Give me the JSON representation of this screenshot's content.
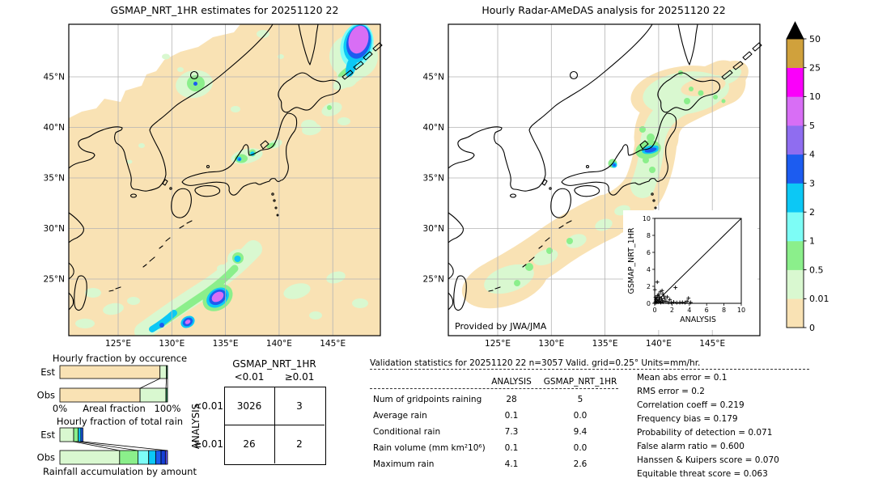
{
  "palette": {
    "tan": "#f9e2b4",
    "pale_green": "#d9f8d0",
    "green": "#8bef8b",
    "aqua": "#7dfdf6",
    "cyan": "#0cc8f5",
    "blue": "#1c5cf0",
    "deep_blue": "#1440d8",
    "medium_purple": "#8f6df0",
    "violet": "#d86ef5",
    "magenta": "#fa00fa",
    "goldenrod": "#d0a13c",
    "dark_green": "#2e8b57",
    "indigo": "#5f54e8",
    "over": "#000000"
  },
  "left_map": {
    "title": "GSMAP_NRT_1HR estimates for 20251120 22",
    "lat_tick_labels": [
      "45°N",
      "40°N",
      "35°N",
      "30°N",
      "25°N"
    ],
    "lon_tick_labels": [
      "125°E",
      "130°E",
      "135°E",
      "140°E",
      "145°E"
    ]
  },
  "right_map": {
    "title": "Hourly Radar-AMeDAS analysis for 20251120 22",
    "credit": "Provided by JWA/JMA",
    "lat_tick_labels": [
      "45°N",
      "40°N",
      "35°N",
      "30°N",
      "25°N"
    ],
    "lon_tick_labels": [
      "125°E",
      "130°E",
      "135°E",
      "140°E",
      "145°E"
    ]
  },
  "colorbar": {
    "tick_labels_bottom_to_top": [
      "0",
      "0.01",
      "0.5",
      "1",
      "2",
      "3",
      "4",
      "5",
      "10",
      "25",
      "50"
    ],
    "segment_colors_bottom_to_top": [
      "tan",
      "pale_green",
      "green",
      "aqua",
      "cyan",
      "blue",
      "medium_purple",
      "violet",
      "magenta",
      "goldenrod"
    ],
    "over_color": "over",
    "units": "mm/hr"
  },
  "chart_data": [
    {
      "id": "occurrence_fraction",
      "type": "bar",
      "title": "Hourly fraction by occurence",
      "xlabel": "Areal fraction",
      "x_tick_labels": [
        "0%",
        "100%"
      ],
      "rows": [
        {
          "label": "Est",
          "segments": [
            {
              "pct": 93,
              "color_key": "tan"
            },
            {
              "pct": 6,
              "color_key": "pale_green"
            },
            {
              "pct": 1,
              "color_key": "dark_green"
            }
          ]
        },
        {
          "label": "Obs",
          "segments": [
            {
              "pct": 74.5,
              "color_key": "tan"
            },
            {
              "pct": 24,
              "color_key": "pale_green"
            },
            {
              "pct": 1.5,
              "color_key": "dark_green"
            }
          ]
        }
      ]
    },
    {
      "id": "totalrain_fraction",
      "type": "bar",
      "title": "Hourly fraction of total rain",
      "xlabel": "Rainfall accumulation by amount",
      "rows": [
        {
          "label": "Est",
          "segments": [
            {
              "pct": 12.8,
              "color_key": "pale_green"
            },
            {
              "pct": 4.3,
              "color_key": "green"
            },
            {
              "pct": 2.4,
              "color_key": "cyan"
            },
            {
              "pct": 1.9,
              "color_key": "blue"
            }
          ]
        },
        {
          "label": "Obs",
          "segments": [
            {
              "pct": 55.5,
              "color_key": "pale_green"
            },
            {
              "pct": 17,
              "color_key": "green"
            },
            {
              "pct": 10,
              "color_key": "aqua"
            },
            {
              "pct": 6.5,
              "color_key": "cyan"
            },
            {
              "pct": 5,
              "color_key": "blue"
            },
            {
              "pct": 4,
              "color_key": "deep_blue"
            },
            {
              "pct": 2,
              "color_key": "indigo"
            }
          ]
        }
      ]
    },
    {
      "id": "contingency_table",
      "type": "table",
      "col_group": "GSMAP_NRT_1HR",
      "row_group": "ANALYSIS",
      "col_labels": [
        "<0.01",
        "≥0.01"
      ],
      "row_labels": [
        "<0.01",
        "≥0.01"
      ],
      "values": [
        [
          3026,
          3
        ],
        [
          26,
          2
        ]
      ]
    },
    {
      "id": "validation_stats",
      "type": "table",
      "title": "Validation statistics for 20251120 22  n=3057 Valid. grid=0.25° Units=mm/hr.",
      "columns": [
        "ANALYSIS",
        "GSMAP_NRT_1HR"
      ],
      "rows": [
        {
          "label": "Num of gridpoints raining",
          "values": [
            "28",
            "5"
          ]
        },
        {
          "label": "Average rain",
          "values": [
            "0.1",
            "0.0"
          ]
        },
        {
          "label": "Conditional rain",
          "values": [
            "7.3",
            "9.4"
          ]
        },
        {
          "label": "Rain volume (mm km²10⁶)",
          "values": [
            "0.1",
            "0.0"
          ]
        },
        {
          "label": "Maximum rain",
          "values": [
            "4.1",
            "2.6"
          ]
        }
      ]
    },
    {
      "id": "skill_scores",
      "type": "table",
      "rows": [
        {
          "label": "Mean abs error",
          "value": "0.1"
        },
        {
          "label": "RMS error",
          "value": "0.2"
        },
        {
          "label": "Correlation coeff",
          "value": "0.219"
        },
        {
          "label": "Frequency bias",
          "value": "0.179"
        },
        {
          "label": "Probability of detection",
          "value": "0.071"
        },
        {
          "label": "False alarm ratio",
          "value": "0.600"
        },
        {
          "label": "Hanssen & Kuipers score",
          "value": "0.070"
        },
        {
          "label": "Equitable threat score",
          "value": "0.063"
        }
      ]
    },
    {
      "id": "scatter_inset",
      "type": "scatter",
      "xlabel": "ANALYSIS",
      "ylabel": "GSMAP_NRT_1HR",
      "xlim": [
        0,
        10
      ],
      "ylim": [
        0,
        10
      ],
      "tick_labels": [
        "0",
        "2",
        "4",
        "6",
        "8",
        "10"
      ],
      "identity_line": true,
      "points": [
        [
          0.05,
          0.05
        ],
        [
          0.1,
          0.2
        ],
        [
          0.2,
          0.1
        ],
        [
          0.15,
          0.45
        ],
        [
          0.3,
          0.3
        ],
        [
          0.4,
          0.15
        ],
        [
          0.1,
          0.7
        ],
        [
          0.5,
          0.45
        ],
        [
          0.6,
          0.2
        ],
        [
          0.25,
          0.6
        ],
        [
          0.7,
          0.1
        ],
        [
          0.35,
          0.9
        ],
        [
          0.8,
          0.55
        ],
        [
          0.9,
          0.3
        ],
        [
          0.55,
          0.75
        ],
        [
          0.45,
          1.05
        ],
        [
          1.0,
          0.15
        ],
        [
          0.65,
          1.35
        ],
        [
          1.15,
          0.55
        ],
        [
          0.3,
          2.5
        ],
        [
          0.85,
          1.5
        ],
        [
          1.3,
          0.25
        ],
        [
          1.45,
          0.75
        ],
        [
          0.95,
          1.1
        ],
        [
          1.6,
          0.1
        ],
        [
          1.75,
          0.45
        ],
        [
          2.4,
          1.85
        ],
        [
          1.9,
          0.1
        ],
        [
          2.2,
          0.15
        ],
        [
          2.55,
          0.08
        ],
        [
          2.9,
          0.1
        ],
        [
          3.2,
          0.12
        ],
        [
          3.5,
          0.08
        ],
        [
          3.75,
          0.25
        ],
        [
          3.9,
          0.6
        ],
        [
          4.15,
          0.1
        ],
        [
          1.05,
          0.85
        ],
        [
          0.02,
          1.6
        ]
      ]
    }
  ]
}
